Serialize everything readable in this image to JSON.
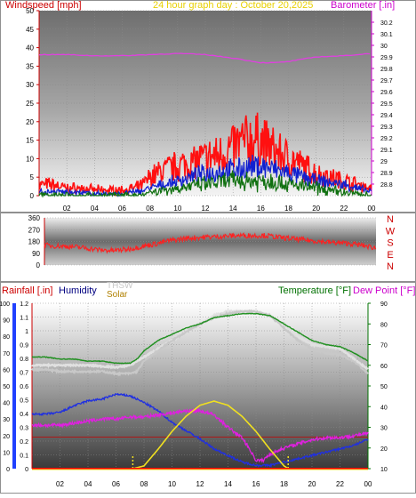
{
  "header": {
    "left_title": "Windspeed [mph]",
    "center_title": "24 hour graph day : October 20,2025",
    "right_title": "Barometer [.in]"
  },
  "colors": {
    "wind_gust": "#ff1010",
    "wind_avg": "#1020d0",
    "wind_low": "#107010",
    "barometer": "#e040e0",
    "wind_dir": "#ff2020",
    "temperature": "#209020",
    "dew_point": "#e020e0",
    "humidity": "#2030e0",
    "thsw": "#c8c8c8",
    "temp_hi": "#e0e0e0",
    "solar": "#f0e020",
    "rain_line": "#c80000",
    "rain_axis": "#2040ff",
    "baseline": "#ff0000",
    "title_red": "#cc0000",
    "title_yellow": "#e8d000",
    "title_magenta": "#cc00cc",
    "title_green": "#007000",
    "title_navy": "#000080",
    "title_olive": "#b08000"
  },
  "chart_data": [
    {
      "type": "line",
      "id": "wind_barometer",
      "title": "24 hour graph day : October 20,2025",
      "x_axis": {
        "unit": "hour",
        "range": [
          0,
          24
        ],
        "ticks": [
          "02",
          "04",
          "06",
          "08",
          "10",
          "12",
          "14",
          "16",
          "18",
          "20",
          "22",
          "00"
        ]
      },
      "left_axis": {
        "label": "Windspeed [mph]",
        "range": [
          0,
          50
        ],
        "ticks": [
          "0",
          "5",
          "10",
          "15",
          "20",
          "25",
          "30",
          "35",
          "40",
          "45",
          "50"
        ]
      },
      "right_axis": {
        "label": "Barometer [.in]",
        "range": [
          28.7,
          30.3
        ],
        "ticks": [
          "28.8",
          "28.9",
          "29",
          "29.1",
          "29.2",
          "29.3",
          "29.4",
          "29.5",
          "29.6",
          "29.7",
          "29.8",
          "29.9",
          "30",
          "30.1",
          "30.2"
        ]
      },
      "series": [
        {
          "key": "gust",
          "axis": "left",
          "x": [
            0,
            1,
            2,
            3,
            4,
            5,
            6,
            7,
            7.5,
            8,
            9,
            10,
            11,
            12,
            13,
            14,
            15,
            16,
            17,
            18,
            19,
            20,
            21,
            22,
            23,
            24
          ],
          "y": [
            3,
            3,
            2,
            2,
            1.5,
            1.5,
            1.5,
            2,
            3,
            5,
            7,
            8,
            9,
            10,
            11,
            13,
            15,
            15,
            12,
            10,
            8,
            6,
            5,
            4,
            3,
            2
          ]
        },
        {
          "key": "avg",
          "axis": "left",
          "x": [
            0,
            2,
            4,
            6,
            7,
            8,
            10,
            12,
            14,
            16,
            17,
            18,
            20,
            22,
            24
          ],
          "y": [
            1,
            1,
            0.5,
            0.5,
            1,
            2,
            4,
            6,
            7,
            8,
            7,
            6,
            4,
            3,
            1
          ]
        },
        {
          "key": "low",
          "axis": "left",
          "x": [
            0,
            2,
            4,
            6,
            7,
            8,
            10,
            12,
            14,
            16,
            17,
            18,
            20,
            22,
            24
          ],
          "y": [
            0,
            0,
            0,
            0,
            0,
            1,
            2,
            3,
            4,
            4,
            4,
            3,
            2,
            1,
            0
          ]
        },
        {
          "key": "barometer",
          "axis": "right",
          "x": [
            0,
            2,
            4,
            6,
            8,
            10,
            12,
            14,
            16,
            17,
            18,
            20,
            22,
            24
          ],
          "y": [
            29.92,
            29.92,
            29.91,
            29.91,
            29.92,
            29.93,
            29.92,
            29.89,
            29.85,
            29.85,
            29.86,
            29.9,
            29.91,
            29.93
          ]
        }
      ]
    },
    {
      "type": "line",
      "id": "wind_direction",
      "x_axis": {
        "unit": "hour",
        "range": [
          0,
          24
        ],
        "ticks": [
          "02",
          "04",
          "06",
          "08",
          "10",
          "12",
          "14",
          "16",
          "18",
          "20",
          "22",
          "00"
        ]
      },
      "left_axis": {
        "label": "",
        "range": [
          0,
          360
        ],
        "ticks": [
          "0",
          "90",
          "180",
          "270",
          "360"
        ]
      },
      "right_axis": {
        "labels": [
          "N",
          "W",
          "S",
          "E",
          "N"
        ]
      },
      "series": [
        {
          "key": "direction",
          "x": [
            0,
            1,
            2,
            3,
            4,
            5,
            6,
            7,
            8,
            9,
            10,
            11,
            12,
            13,
            14,
            15,
            16,
            17,
            18,
            19,
            20,
            21,
            22,
            23,
            24
          ],
          "y": [
            150,
            145,
            140,
            130,
            115,
            110,
            120,
            140,
            160,
            185,
            200,
            210,
            215,
            220,
            225,
            225,
            225,
            210,
            200,
            190,
            180,
            170,
            165,
            150,
            130
          ]
        }
      ]
    },
    {
      "type": "line",
      "id": "rain_humidity_solar_temperature",
      "x_axis": {
        "unit": "hour",
        "range": [
          0,
          24
        ],
        "ticks": [
          "02",
          "04",
          "06",
          "08",
          "10",
          "12",
          "14",
          "16",
          "18",
          "20",
          "22",
          "00"
        ]
      },
      "legend": [
        "Rainfall [.in]",
        "Humidity",
        "THSW",
        "Solar",
        "Temperature [°F]",
        "Dew Point [°F]"
      ],
      "rain_axis": {
        "range": [
          0,
          1.2
        ],
        "ticks": [
          "0",
          "0.1",
          "0.2",
          "0.3",
          "0.4",
          "0.5",
          "0.6",
          "0.7",
          "0.8",
          "0.9",
          "1",
          "1.1",
          "1.2"
        ]
      },
      "humidity_axis": {
        "range": [
          0,
          100
        ],
        "ticks": [
          "0",
          "10",
          "20",
          "30",
          "40",
          "50",
          "60",
          "70",
          "80",
          "90",
          "100"
        ]
      },
      "temperature_axis": {
        "range": [
          10,
          90
        ],
        "ticks": [
          "10",
          "20",
          "30",
          "40",
          "50",
          "60",
          "70",
          "80",
          "90"
        ]
      },
      "series": [
        {
          "key": "temperature",
          "axis": "temperature",
          "x": [
            0,
            1,
            2,
            3,
            4,
            5,
            6,
            7,
            7.5,
            8,
            9,
            10,
            11,
            12,
            13,
            14,
            15,
            16,
            17,
            18,
            19,
            20,
            21,
            22,
            23,
            24
          ],
          "y": [
            64,
            64,
            63,
            63,
            62,
            62,
            61,
            61,
            63,
            67,
            72,
            75,
            78,
            80,
            83,
            84,
            85,
            85,
            84,
            80,
            76,
            72,
            70,
            69,
            66,
            62
          ]
        },
        {
          "key": "thsw",
          "axis": "temperature",
          "x": [
            0,
            1,
            2,
            3,
            4,
            5,
            6,
            7,
            7.5,
            8,
            9,
            10,
            11,
            12,
            13,
            14,
            15,
            16,
            17,
            18,
            19,
            20,
            21,
            22,
            23,
            24
          ],
          "y": [
            58,
            58,
            57,
            57,
            57,
            57,
            56,
            56,
            57,
            62,
            67,
            72,
            76,
            80,
            83,
            85,
            86,
            86,
            84,
            78,
            72,
            68,
            66,
            65,
            62,
            56
          ]
        },
        {
          "key": "temp_hi",
          "axis": "temperature",
          "x": [
            0,
            2,
            4,
            6,
            7,
            8,
            9,
            10,
            11,
            12,
            13,
            14,
            15,
            16,
            17,
            18,
            19,
            20,
            22,
            24
          ],
          "y": [
            60,
            60,
            60,
            59,
            60,
            64,
            68,
            72,
            76,
            80,
            84,
            86,
            86,
            86,
            84,
            80,
            74,
            70,
            68,
            58
          ]
        },
        {
          "key": "dew_point",
          "axis": "temperature",
          "x": [
            0,
            1,
            2,
            3,
            4,
            5,
            6,
            7,
            8,
            9,
            10,
            11,
            12,
            13,
            14,
            15,
            15.5,
            16,
            16.5,
            17,
            18,
            19,
            20,
            21,
            22,
            23,
            24
          ],
          "y": [
            31,
            31,
            31,
            32,
            33,
            34,
            34,
            35,
            35,
            36,
            37,
            38,
            38,
            36,
            30,
            25,
            20,
            14,
            14,
            17,
            20,
            22,
            24,
            25,
            25,
            26,
            27
          ]
        },
        {
          "key": "humidity",
          "axis": "humidity",
          "x": [
            0,
            1,
            2,
            3,
            4,
            5,
            6,
            7,
            8,
            9,
            10,
            11,
            12,
            13,
            14,
            15,
            16,
            17,
            18,
            19,
            20,
            21,
            22,
            23,
            24
          ],
          "y": [
            33,
            33,
            34,
            38,
            41,
            42,
            45,
            44,
            40,
            35,
            28,
            23,
            18,
            12,
            8,
            4,
            2,
            2,
            4,
            6,
            8,
            10,
            12,
            14,
            18
          ]
        },
        {
          "key": "solar",
          "axis": "rain",
          "x": [
            7.2,
            8,
            9,
            10,
            11,
            12,
            13,
            14,
            15,
            16,
            17,
            18,
            18.3
          ],
          "y": [
            0,
            0.02,
            0.14,
            0.27,
            0.38,
            0.46,
            0.49,
            0.46,
            0.38,
            0.27,
            0.14,
            0.02,
            0
          ]
        },
        {
          "key": "rain_rate_line",
          "axis": "rain",
          "x": [
            0,
            24
          ],
          "y": [
            0.23,
            0.23
          ]
        },
        {
          "key": "rainfall",
          "axis": "rain",
          "x": [
            0,
            24
          ],
          "y": [
            0,
            0
          ]
        }
      ]
    }
  ]
}
